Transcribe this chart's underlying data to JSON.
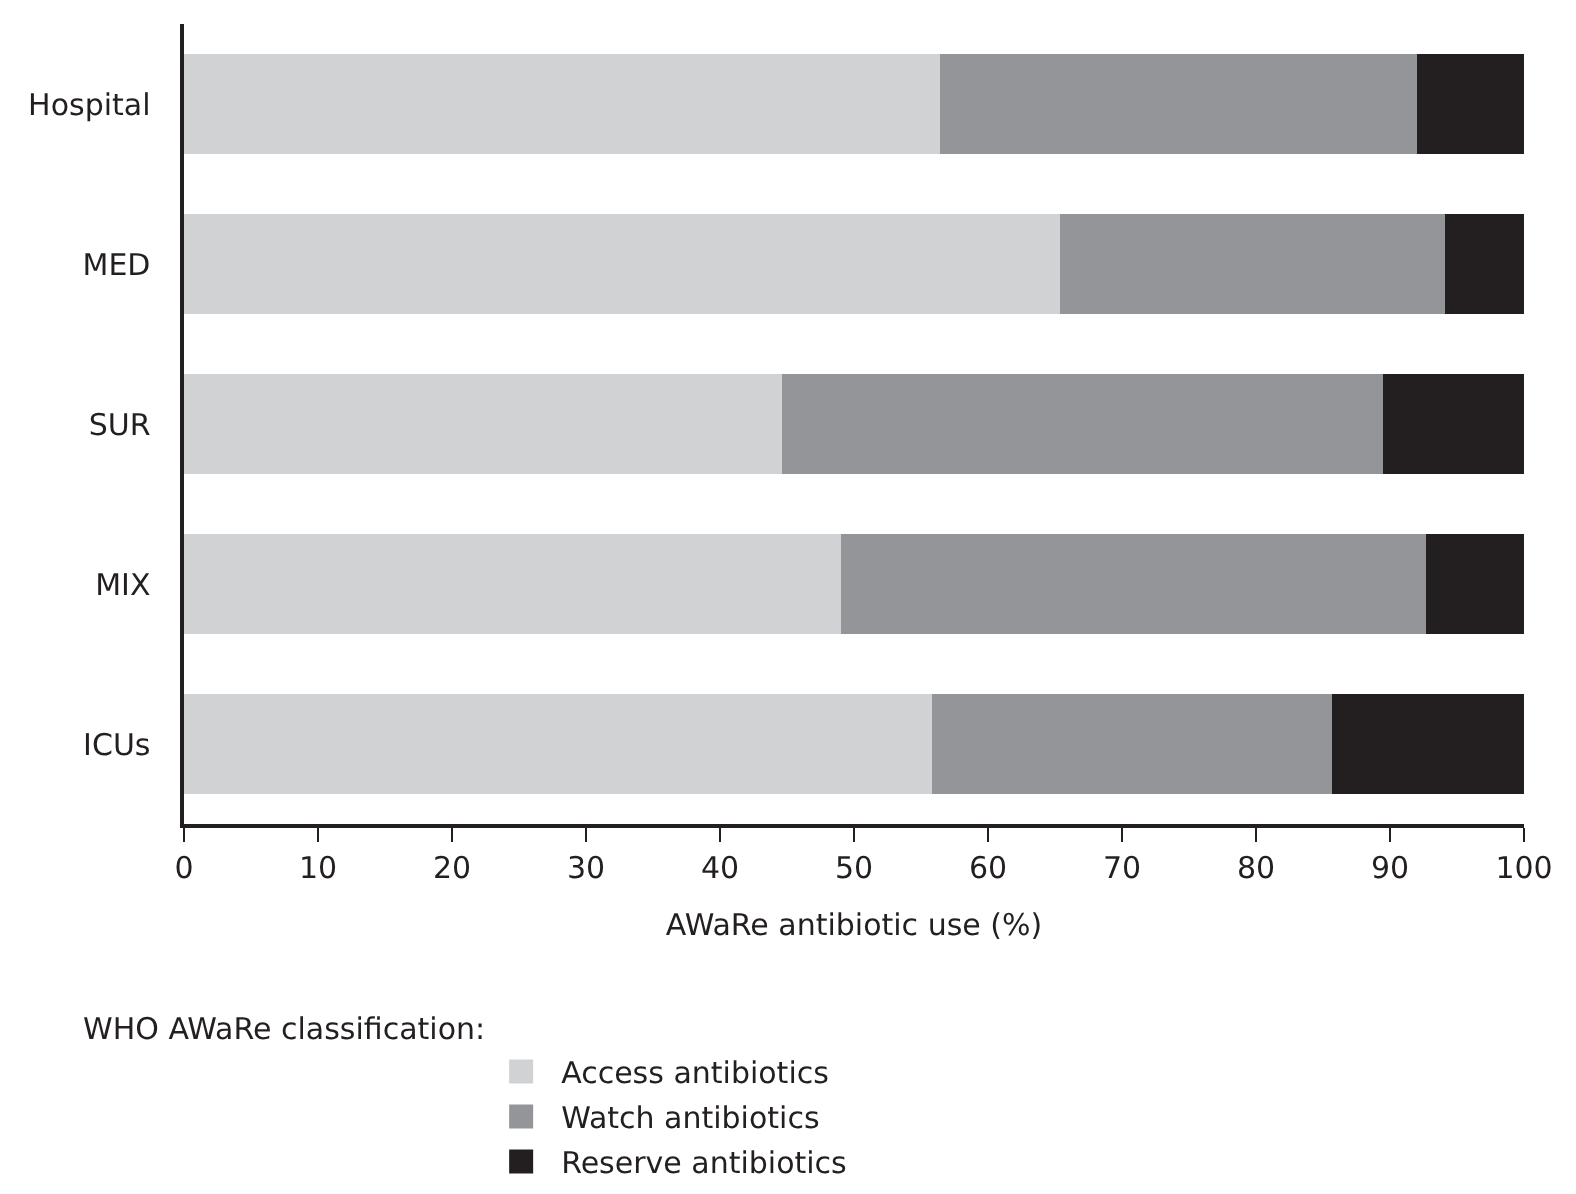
{
  "chart_data": {
    "type": "bar",
    "orientation": "horizontal",
    "stacked": true,
    "xlabel": "AWaRe antibiotic use (%)",
    "legend_title": "WHO AWaRe classification:",
    "legend": "bottom",
    "categories": [
      "Hospital",
      "MED",
      "SUR",
      "MIX",
      "ICUs"
    ],
    "xlim": [
      0,
      100
    ],
    "xticks": [
      0,
      10,
      20,
      30,
      40,
      50,
      60,
      70,
      80,
      90,
      100
    ],
    "series": [
      {
        "name": "Access antibiotics",
        "color": "#d1d2d4",
        "values": [
          56.4,
          65.4,
          44.6,
          49.0,
          55.8
        ]
      },
      {
        "name": "Watch antibiotics",
        "color": "#939598",
        "values": [
          35.6,
          28.7,
          44.9,
          43.7,
          29.9
        ]
      },
      {
        "name": "Reserve antibiotics",
        "color": "#231f20",
        "values": [
          8.0,
          5.9,
          10.5,
          7.3,
          14.3
        ]
      }
    ]
  }
}
